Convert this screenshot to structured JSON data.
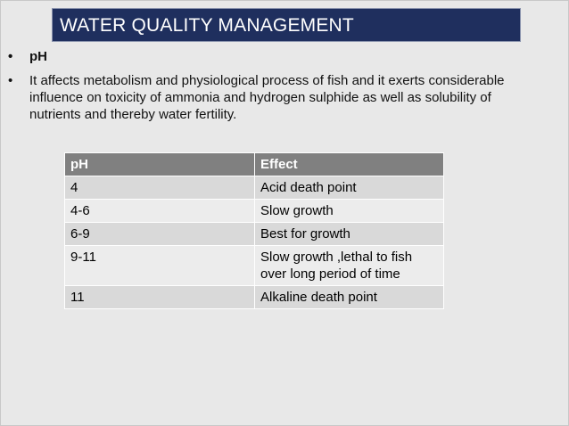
{
  "header": {
    "title": "WATER QUALITY MANAGEMENT"
  },
  "bullets": [
    "pH",
    "It affects metabolism and physiological process of fish and it exerts considerable influence on toxicity of ammonia and hydrogen sulphide as well as solubility of nutrients and thereby water fertility."
  ],
  "table": {
    "columns": [
      "pH",
      "Effect"
    ],
    "rows": [
      [
        "4",
        "Acid death point"
      ],
      [
        "4-6",
        "Slow growth"
      ],
      [
        "6-9",
        "Best for growth"
      ],
      [
        "9-11",
        "Slow growth ,lethal to fish over long period of time"
      ],
      [
        "11",
        "Alkaline death point"
      ]
    ]
  }
}
